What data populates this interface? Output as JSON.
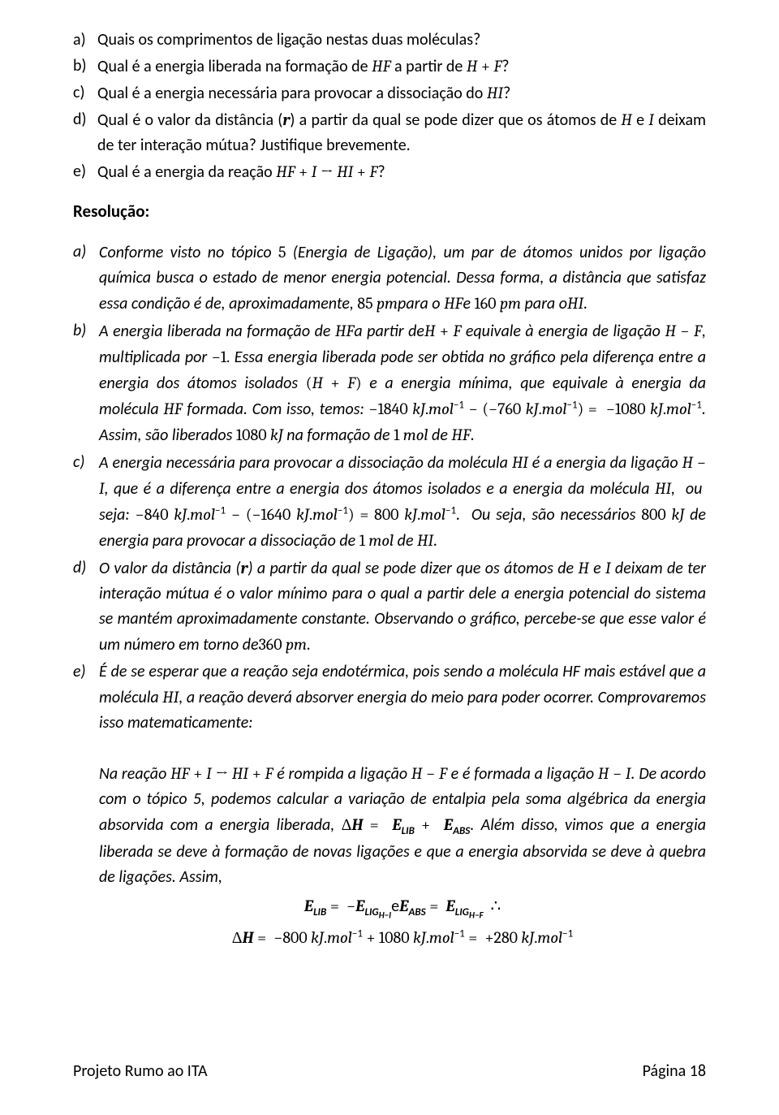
{
  "questions": [
    {
      "marker": "a)",
      "html": "Quais os comprimentos de ligação nestas duas moléculas?"
    },
    {
      "marker": "b)",
      "html": "Qual é a energia liberada na formação de <span class='math'>HF</span> a partir de <span class='math'>H</span> <span class='mathn'> + </span> <span class='math'>F</span>?"
    },
    {
      "marker": "c)",
      "html": "Qual é a energia necessária para provocar a dissociação do <span class='math'>HI</span>?"
    },
    {
      "marker": "d)",
      "html": "Qual é o valor da distância (<span class='math bold'>r</span>) a partir da qual se pode dizer que os átomos de <span class='math'>H</span> e <span class='math'>I</span> deixam de ter interação mútua? Justifique brevemente."
    },
    {
      "marker": "e)",
      "html": "Qual é a energia da reação <span class='math'>HF</span> <span class='mathn'>+</span> <span class='math'>I</span> <span class='mathn'>→</span> <span class='math'>HI</span> <span class='mathn'>+</span> <span class='math'>F</span>?"
    }
  ],
  "resolucao": "Resolução:",
  "answers": [
    {
      "marker": "a)",
      "html": "Conforme visto no tópico <span class='mathn'>5</span> (Energia de Ligação), um par de átomos unidos por ligação química busca o estado de menor energia potencial. Dessa forma, a distância que satisfaz essa condição é de, aproximadamente, <span class='mathn'>85 </span><span class='math'>pm</span>para o <span class='math'>HF</span>e <span class='mathn'>160 </span><span class='math'>pm</span> para o<span class='math'>HI</span>."
    },
    {
      "marker": "b)",
      "html": "A energia liberada na formação de <span class='math'>HF</span>a partir de<span class='math'>H</span> <span class='mathn'> + </span> <span class='math'>F</span> equivale à energia de ligação <span class='math'>H</span> <span class='mathn'>−</span> <span class='math'>F</span>, multiplicada por <span class='mathn'>−1.</span> Essa energia liberada pode ser obtida no gráfico pela diferença entre a energia dos átomos isolados <span class='mathn'>(</span><span class='math'>H</span> <span class='mathn'> + </span> <span class='math'>F</span><span class='mathn'>)</span> e a energia mínima, que equivale à energia da molécula <span class='math'>HF</span> formada. Com isso, temos: <span class='mathn'>−1840 </span><span class='math'>kJ</span><span class='mathn'>.</span><span class='math'>mol</span><span class='sup'>−1</span> <span class='mathn'>−</span> <span class='mathn'>(−760 </span><span class='math'>kJ</span><span class='mathn'>.</span><span class='math'>mol</span><span class='sup'>−1</span><span class='mathn'>) = &nbsp;−1080 </span><span class='math'>kJ</span><span class='mathn'>.</span><span class='math'>mol</span><span class='sup'>−1</span>. Assim, são liberados <span class='mathn'>1080 </span><span class='math'>kJ</span> na formação de <span class='mathn'>1 </span><span class='math'>mol</span> de <span class='math'>HF</span>."
    },
    {
      "marker": "c)",
      "html": "A energia necessária para provocar a dissociação da molécula <span class='math'>HI</span> é a energia da ligação <span class='math'>H</span> <span class='mathn'>−</span> <span class='math'>I</span>, que é a diferença entre a energia dos átomos isolados e a energia da molécula <span class='math'>HI</span>,&nbsp; ou&nbsp; seja: <span class='mathn'>−840 </span><span class='math'>kJ</span><span class='mathn'>.</span><span class='math'>mol</span><span class='sup'>−1</span> <span class='mathn'>− (−1640 </span><span class='math'>kJ</span><span class='mathn'>.</span><span class='math'>mol</span><span class='sup'>−1</span><span class='mathn'>) = 800 </span><span class='math'>kJ</span><span class='mathn'>.</span><span class='math'>mol</span><span class='sup'>−1</span>.&nbsp; Ou seja, são necessários <span class='mathn'>800 </span><span class='math'>kJ</span> de energia para provocar a dissociação de <span class='mathn'>1 </span><span class='math'>mol</span> de <span class='math'>HI</span>."
    },
    {
      "marker": "d)",
      "html": "O valor da distância (<span class='math bold'>r</span>) a partir da qual se pode dizer que os átomos de <span class='math'>H</span> e <span class='math'>I</span> deixam de ter interação mútua é o valor mínimo para o qual a partir dele a energia potencial do sistema se mantém aproximadamente constante. Observando o gráfico, percebe-se que esse valor é um número em torno de<span class='mathn'>360 </span><span class='math'>pm</span>."
    },
    {
      "marker": "e)",
      "html": "É de se esperar que a reação seja endotérmica, pois sendo a molécula HF mais estável que a molécula <span class='math'>HI</span>, a reação deverá absorver energia do meio para poder ocorrer. Comprovaremos isso matematicamente:<br><br>Na reação <span class='math'>HF</span> <span class='mathn'>+</span> <span class='math'>I</span> <span class='mathn'>→</span> <span class='math'>HI</span> <span class='mathn'>+</span> <span class='math'>F</span> é rompida a ligação <span class='math'>H</span> <span class='mathn'>−</span> <span class='math'>F</span> e é formada a ligação <span class='math'>H</span> <span class='mathn'>−</span> <span class='math'>I</span>. De acordo com o tópico 5, podemos calcular a variação de entalpia pela soma algébrica da energia absorvida com a energia liberada, <span class='mathn'>Δ</span><span class='math bold'>H</span> <span class='mathn'>=</span> &nbsp;<span class='math bold'>E</span><span class='sub bold'>LIB</span> <span class='mathn'>+</span> &nbsp;<span class='math bold'>E</span><span class='sub bold'>ABS</span>. Além disso, vimos que a energia liberada se deve à formação de novas ligações e que a energia absorvida se deve à quebra de ligações. Assim,<div class='eqline'><span class='math bold'>E</span><span class='sub bold'>LIB</span> <span class='mathn'>=</span> &nbsp;<span class='mathn'>−</span><span class='math bold'>E</span><span class='sub bold'>LIG<sub style='font-size:0.85em'>H−I</sub></span>e<span class='math bold'>E</span><span class='sub bold'>ABS</span> <span class='mathn'>=</span> &nbsp;<span class='math bold'>E</span><span class='sub bold'>LIG<sub style='font-size:0.85em'>H−F</sub></span>&nbsp;&nbsp;∴</div><div class='eqline'><span class='mathn'>Δ</span><span class='math bold'>H</span> <span class='mathn'>=</span> &nbsp;<span class='mathn'>−800 </span><span class='math'>kJ</span><span class='mathn'>.</span><span class='math'>mol</span><span class='sup'>−1</span> <span class='mathn'>+ 1080 </span><span class='math'>kJ</span><span class='mathn'>.</span><span class='math'>mol</span><span class='sup'>−1</span> <span class='mathn'>=</span> &nbsp;<span class='mathn'>+280 </span><span class='math'>kJ</span><span class='mathn'>.</span><span class='math'>mol</span><span class='sup'>−1</span></div>"
    }
  ],
  "footer_left": "Projeto Rumo ao ITA",
  "footer_right": "Página 18"
}
